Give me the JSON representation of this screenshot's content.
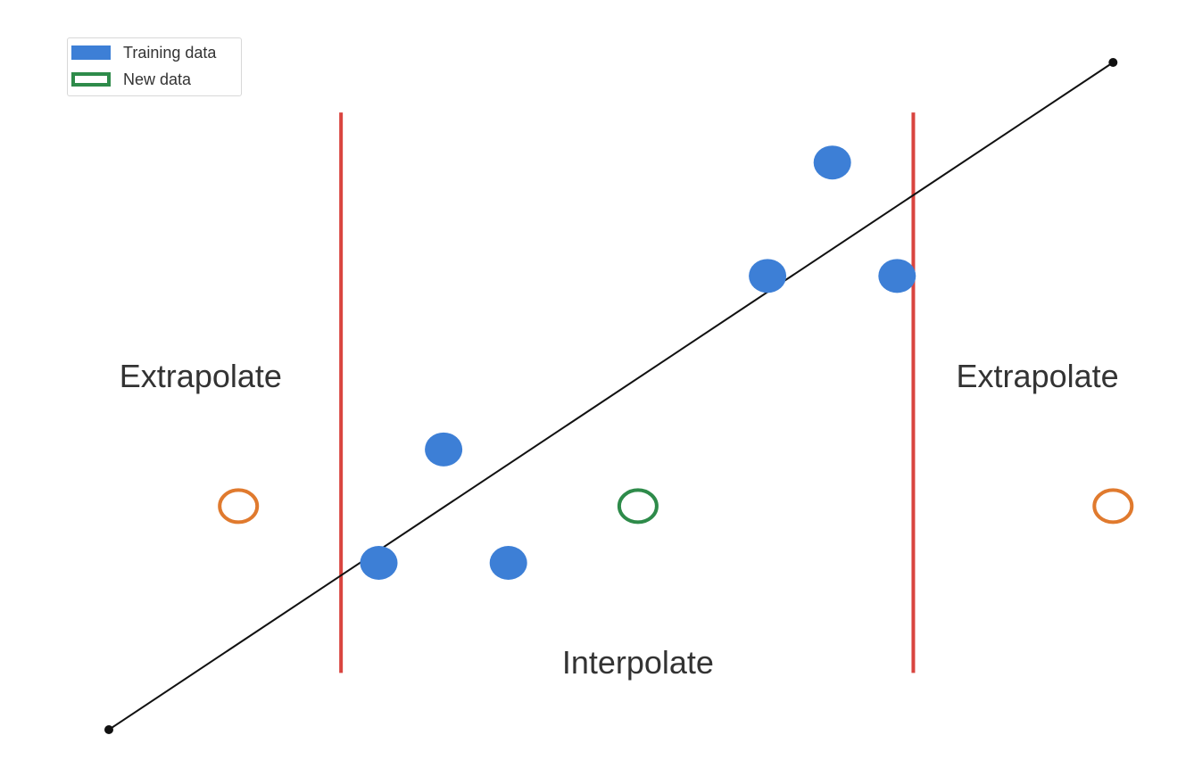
{
  "chart_data": {
    "type": "scatter",
    "x_range": [
      0,
      10
    ],
    "y_range": [
      0,
      10
    ],
    "grid": false,
    "axes_visible": false,
    "legend": {
      "placement": "top-left",
      "items": [
        {
          "label": "Training data",
          "style": "filled",
          "color": "#3d7fd6"
        },
        {
          "label": "New data",
          "style": "hollow",
          "color": "#2e8b4a"
        }
      ]
    },
    "series": [
      {
        "name": "Training data",
        "style": "filled",
        "color": "#3d7fd6",
        "points": [
          {
            "x": 2.5,
            "y": 2.5
          },
          {
            "x": 3.1,
            "y": 4.2
          },
          {
            "x": 3.7,
            "y": 2.5
          },
          {
            "x": 6.1,
            "y": 6.8
          },
          {
            "x": 6.7,
            "y": 8.5
          },
          {
            "x": 7.3,
            "y": 6.8
          }
        ]
      },
      {
        "name": "New data",
        "style": "hollow",
        "color": "#2e8b4a",
        "points": [
          {
            "x": 4.9,
            "y": 3.35
          }
        ]
      },
      {
        "name": "",
        "style": "hollow",
        "color": "#e07a2e",
        "points": [
          {
            "x": 1.2,
            "y": 3.35
          },
          {
            "x": 9.3,
            "y": 3.35
          }
        ]
      }
    ],
    "fit_line": {
      "color": "#111111",
      "from": {
        "x": 0,
        "y": 0
      },
      "to": {
        "x": 9.3,
        "y": 10
      }
    },
    "boundaries": {
      "color": "#d9443f",
      "x_values": [
        2.15,
        7.45
      ],
      "y_span": [
        0.85,
        9.25
      ]
    },
    "region_labels": [
      {
        "text": "Extrapolate",
        "x": 0.85,
        "y": 5.3
      },
      {
        "text": "Interpolate",
        "x": 4.9,
        "y": 1.0
      },
      {
        "text": "Extrapolate",
        "x": 8.6,
        "y": 5.3
      }
    ]
  }
}
